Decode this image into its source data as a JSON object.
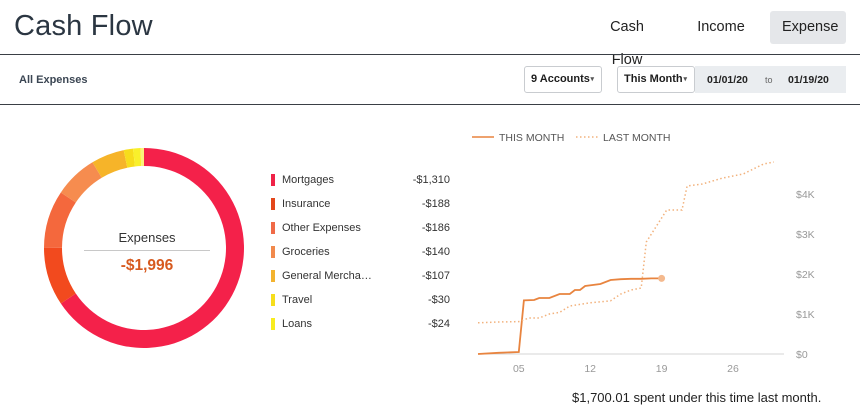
{
  "header": {
    "title": "Cash Flow",
    "tabs": [
      {
        "label": "Cash Flow"
      },
      {
        "label": "Income"
      },
      {
        "label": "Expense",
        "active": true
      }
    ]
  },
  "filters": {
    "section_label": "All Expenses",
    "accounts_label": "9 Accounts",
    "period_label": "This Month",
    "date_from": "01/01/20",
    "date_to_word": "to",
    "date_to": "01/19/20"
  },
  "donut": {
    "label": "Expenses",
    "total": "-$1,996",
    "segments": [
      {
        "name": "Mortgages",
        "value": 1310,
        "color": "#f4214a"
      },
      {
        "name": "Insurance",
        "value": 188,
        "color": "#f24a1e"
      },
      {
        "name": "Other Expenses",
        "value": 186,
        "color": "#f4683d"
      },
      {
        "name": "Groceries",
        "value": 140,
        "color": "#f68c4f"
      },
      {
        "name": "General Merchandise",
        "value": 107,
        "color": "#f6b429"
      },
      {
        "name": "Travel",
        "value": 30,
        "color": "#f7dd1b"
      },
      {
        "name": "Loans",
        "value": 24,
        "color": "#f9f02b"
      },
      {
        "name": "Other",
        "value": 11,
        "color": "#fbf27a"
      }
    ]
  },
  "legend": [
    {
      "name": "Mortgages",
      "amount": "-$1,310",
      "color": "#ef2247"
    },
    {
      "name": "Insurance",
      "amount": "-$188",
      "color": "#e3471b"
    },
    {
      "name": "Other Expenses",
      "amount": "-$186",
      "color": "#f06a47"
    },
    {
      "name": "Groceries",
      "amount": "-$140",
      "color": "#f1894c"
    },
    {
      "name": "General Mercha…",
      "amount": "-$107",
      "color": "#f3b32f"
    },
    {
      "name": "Travel",
      "amount": "-$30",
      "color": "#f6de1c"
    },
    {
      "name": "Loans",
      "amount": "-$24",
      "color": "#f8ec1f"
    }
  ],
  "chart_data": {
    "type": "line",
    "legend": [
      "THIS MONTH",
      "LAST MONTH"
    ],
    "x_ticks": [
      "05",
      "12",
      "19",
      "26"
    ],
    "y_ticks": [
      "$0",
      "$1K",
      "$2K",
      "$3K",
      "$4K"
    ],
    "ylim": [
      0,
      4800
    ],
    "xlim": [
      1,
      31
    ],
    "series": [
      {
        "name": "THIS MONTH",
        "style": "solid",
        "color": "#e8843f",
        "points": [
          [
            1,
            0
          ],
          [
            3,
            30
          ],
          [
            5,
            50
          ],
          [
            5.5,
            1340
          ],
          [
            6.5,
            1350
          ],
          [
            7,
            1400
          ],
          [
            8,
            1400
          ],
          [
            9,
            1500
          ],
          [
            10,
            1500
          ],
          [
            10.5,
            1600
          ],
          [
            11,
            1600
          ],
          [
            11.5,
            1700
          ],
          [
            13,
            1750
          ],
          [
            14,
            1850
          ],
          [
            15,
            1870
          ],
          [
            16,
            1880
          ],
          [
            17,
            1880
          ],
          [
            18,
            1890
          ],
          [
            19,
            1890
          ]
        ]
      },
      {
        "name": "LAST MONTH",
        "style": "dotted",
        "color": "#f2b27d",
        "points": [
          [
            1,
            780
          ],
          [
            3,
            800
          ],
          [
            5,
            810
          ],
          [
            6,
            900
          ],
          [
            7,
            900
          ],
          [
            8,
            1000
          ],
          [
            9,
            1040
          ],
          [
            10,
            1200
          ],
          [
            12,
            1280
          ],
          [
            14,
            1330
          ],
          [
            15,
            1500
          ],
          [
            16,
            1600
          ],
          [
            17,
            1650
          ],
          [
            17.5,
            2800
          ],
          [
            18.5,
            3200
          ],
          [
            19.5,
            3600
          ],
          [
            20.5,
            3600
          ],
          [
            21,
            3600
          ],
          [
            21.5,
            4200
          ],
          [
            23,
            4250
          ],
          [
            25,
            4400
          ],
          [
            27,
            4500
          ],
          [
            29,
            4750
          ],
          [
            30,
            4800
          ]
        ]
      }
    ]
  },
  "summary": "$1,700.01 spent under this time last month."
}
